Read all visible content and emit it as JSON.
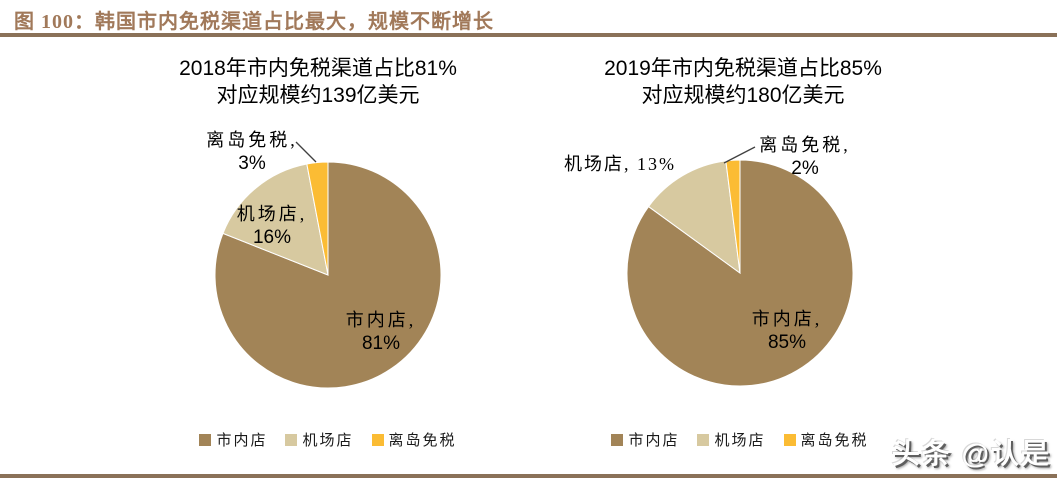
{
  "figure": {
    "title": "图 100：韩国市内免税渠道占比最大，规模不断增长",
    "watermark": "头条 @认是"
  },
  "colors": {
    "title_text": "#A1795A",
    "rule": "#8A7158",
    "slice_city": "#A28457",
    "slice_airport": "#D7C9A0",
    "slice_island": "#FBBC34",
    "leader_line": "#404040"
  },
  "chart_data": [
    {
      "type": "pie",
      "title_line1": "2018年市内免税渠道占比81%",
      "title_line2": "对应规模约139亿美元",
      "categories": [
        "市内店",
        "机场店",
        "离岛免税"
      ],
      "values": [
        81,
        16,
        3
      ],
      "unit": "%",
      "colors": [
        "#A28457",
        "#D7C9A0",
        "#FBBC34"
      ],
      "start_angle": "12-oclock",
      "direction": "clockwise",
      "slice_labels": {
        "city_line1": "市内店,",
        "city_line2": "81%",
        "airport_line1": "机场店,",
        "airport_line2": "16%",
        "island_line1": "离岛免税,",
        "island_line2": "3%"
      },
      "legend": [
        "市内店",
        "机场店",
        "离岛免税"
      ]
    },
    {
      "type": "pie",
      "title_line1": "2019年市内免税渠道占比85%",
      "title_line2": "对应规模约180亿美元",
      "categories": [
        "市内店",
        "机场店",
        "离岛免税"
      ],
      "values": [
        85,
        13,
        2
      ],
      "unit": "%",
      "colors": [
        "#A28457",
        "#D7C9A0",
        "#FBBC34"
      ],
      "start_angle": "12-oclock",
      "direction": "clockwise",
      "slice_labels": {
        "city_line1": "市内店,",
        "city_line2": "85%",
        "airport_single": "机场店, 13%",
        "island_line1": "离岛免税,",
        "island_line2": "2%"
      },
      "legend": [
        "市内店",
        "机场店",
        "离岛免税"
      ]
    }
  ]
}
